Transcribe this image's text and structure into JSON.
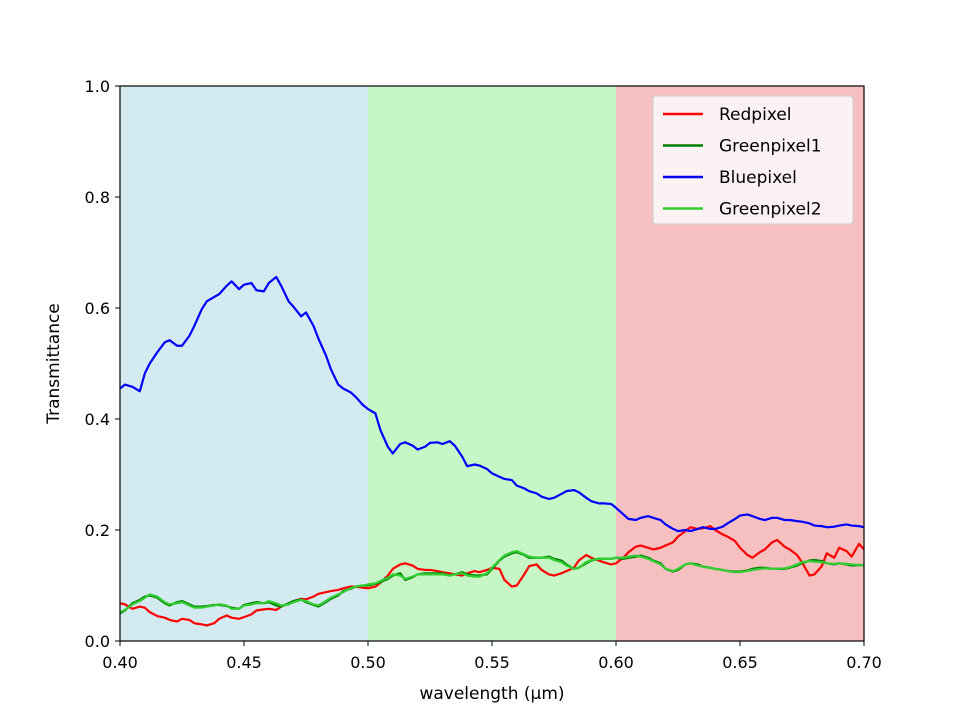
{
  "chart_data": {
    "type": "line",
    "title": "",
    "xlabel": "wavelength (μm)",
    "ylabel": "Transmittance",
    "xlim": [
      0.4,
      0.7
    ],
    "ylim": [
      0.0,
      1.0
    ],
    "x_ticks": [
      "0.40",
      "0.45",
      "0.50",
      "0.55",
      "0.60",
      "0.65",
      "0.70"
    ],
    "y_ticks": [
      "0.0",
      "0.2",
      "0.4",
      "0.6",
      "0.8",
      "1.0"
    ],
    "grid": false,
    "legend_position": "top-right",
    "bands": [
      {
        "from": 0.4,
        "to": 0.5,
        "color": "#d4eaf1"
      },
      {
        "from": 0.5,
        "to": 0.6,
        "color": "#c6f6c6"
      },
      {
        "from": 0.6,
        "to": 0.7,
        "color": "#f6bfc0"
      }
    ],
    "series": [
      {
        "name": "Redpixel",
        "color": "#ff0000",
        "x": [
          0.4,
          0.402,
          0.405,
          0.408,
          0.41,
          0.412,
          0.415,
          0.418,
          0.42,
          0.423,
          0.425,
          0.428,
          0.43,
          0.433,
          0.435,
          0.438,
          0.44,
          0.443,
          0.445,
          0.448,
          0.45,
          0.453,
          0.455,
          0.458,
          0.46,
          0.463,
          0.465,
          0.468,
          0.47,
          0.473,
          0.475,
          0.478,
          0.48,
          0.483,
          0.485,
          0.488,
          0.49,
          0.493,
          0.495,
          0.498,
          0.5,
          0.503,
          0.505,
          0.508,
          0.51,
          0.513,
          0.515,
          0.518,
          0.52,
          0.523,
          0.525,
          0.528,
          0.53,
          0.533,
          0.535,
          0.538,
          0.54,
          0.543,
          0.545,
          0.548,
          0.55,
          0.553,
          0.555,
          0.558,
          0.56,
          0.563,
          0.565,
          0.568,
          0.57,
          0.573,
          0.575,
          0.578,
          0.58,
          0.583,
          0.585,
          0.588,
          0.59,
          0.593,
          0.595,
          0.598,
          0.6,
          0.603,
          0.605,
          0.608,
          0.61,
          0.613,
          0.615,
          0.618,
          0.62,
          0.623,
          0.625,
          0.628,
          0.63,
          0.633,
          0.635,
          0.638,
          0.64,
          0.643,
          0.645,
          0.648,
          0.65,
          0.653,
          0.655,
          0.658,
          0.66,
          0.663,
          0.665,
          0.668,
          0.67,
          0.673,
          0.675,
          0.678,
          0.68,
          0.683,
          0.685,
          0.688,
          0.69,
          0.693,
          0.695,
          0.698,
          0.7
        ],
        "values": [
          0.068,
          0.066,
          0.058,
          0.062,
          0.06,
          0.052,
          0.045,
          0.042,
          0.038,
          0.035,
          0.04,
          0.038,
          0.032,
          0.03,
          0.028,
          0.032,
          0.04,
          0.046,
          0.042,
          0.04,
          0.043,
          0.048,
          0.055,
          0.057,
          0.058,
          0.056,
          0.062,
          0.068,
          0.072,
          0.076,
          0.075,
          0.08,
          0.085,
          0.088,
          0.09,
          0.092,
          0.095,
          0.098,
          0.098,
          0.096,
          0.095,
          0.098,
          0.105,
          0.118,
          0.13,
          0.138,
          0.14,
          0.136,
          0.13,
          0.128,
          0.128,
          0.126,
          0.124,
          0.122,
          0.12,
          0.118,
          0.122,
          0.126,
          0.124,
          0.128,
          0.132,
          0.13,
          0.11,
          0.098,
          0.1,
          0.12,
          0.135,
          0.138,
          0.128,
          0.12,
          0.118,
          0.122,
          0.126,
          0.132,
          0.145,
          0.155,
          0.15,
          0.145,
          0.142,
          0.138,
          0.14,
          0.15,
          0.16,
          0.17,
          0.172,
          0.168,
          0.165,
          0.168,
          0.172,
          0.178,
          0.188,
          0.198,
          0.205,
          0.202,
          0.203,
          0.207,
          0.2,
          0.192,
          0.188,
          0.18,
          0.168,
          0.155,
          0.15,
          0.16,
          0.165,
          0.178,
          0.182,
          0.17,
          0.165,
          0.155,
          0.142,
          0.118,
          0.12,
          0.135,
          0.158,
          0.15,
          0.168,
          0.162,
          0.152,
          0.175,
          0.165
        ]
      },
      {
        "name": "Greenpixel1",
        "color": "#008000",
        "x": [
          0.4,
          0.402,
          0.405,
          0.408,
          0.41,
          0.412,
          0.415,
          0.418,
          0.42,
          0.423,
          0.425,
          0.428,
          0.43,
          0.433,
          0.435,
          0.438,
          0.44,
          0.443,
          0.445,
          0.448,
          0.45,
          0.453,
          0.455,
          0.458,
          0.46,
          0.463,
          0.465,
          0.468,
          0.47,
          0.473,
          0.475,
          0.478,
          0.48,
          0.483,
          0.485,
          0.488,
          0.49,
          0.493,
          0.495,
          0.498,
          0.5,
          0.503,
          0.505,
          0.508,
          0.51,
          0.513,
          0.515,
          0.518,
          0.52,
          0.523,
          0.525,
          0.528,
          0.53,
          0.533,
          0.535,
          0.538,
          0.54,
          0.543,
          0.545,
          0.548,
          0.55,
          0.553,
          0.555,
          0.558,
          0.56,
          0.563,
          0.565,
          0.568,
          0.57,
          0.573,
          0.575,
          0.578,
          0.58,
          0.583,
          0.585,
          0.588,
          0.59,
          0.593,
          0.595,
          0.598,
          0.6,
          0.603,
          0.605,
          0.608,
          0.61,
          0.613,
          0.615,
          0.618,
          0.62,
          0.623,
          0.625,
          0.628,
          0.63,
          0.633,
          0.635,
          0.638,
          0.64,
          0.643,
          0.645,
          0.648,
          0.65,
          0.653,
          0.655,
          0.658,
          0.66,
          0.663,
          0.665,
          0.668,
          0.67,
          0.673,
          0.675,
          0.678,
          0.68,
          0.683,
          0.685,
          0.688,
          0.69,
          0.693,
          0.695,
          0.698,
          0.7
        ],
        "values": [
          0.05,
          0.055,
          0.068,
          0.074,
          0.08,
          0.082,
          0.078,
          0.068,
          0.064,
          0.07,
          0.072,
          0.066,
          0.062,
          0.062,
          0.063,
          0.065,
          0.065,
          0.063,
          0.06,
          0.058,
          0.065,
          0.068,
          0.07,
          0.068,
          0.07,
          0.064,
          0.062,
          0.068,
          0.072,
          0.075,
          0.07,
          0.065,
          0.062,
          0.07,
          0.076,
          0.082,
          0.09,
          0.094,
          0.098,
          0.1,
          0.1,
          0.103,
          0.106,
          0.112,
          0.118,
          0.122,
          0.11,
          0.115,
          0.12,
          0.122,
          0.122,
          0.122,
          0.122,
          0.118,
          0.12,
          0.124,
          0.12,
          0.118,
          0.118,
          0.12,
          0.13,
          0.145,
          0.152,
          0.158,
          0.16,
          0.155,
          0.15,
          0.15,
          0.15,
          0.152,
          0.148,
          0.145,
          0.138,
          0.13,
          0.132,
          0.14,
          0.145,
          0.148,
          0.148,
          0.148,
          0.15,
          0.148,
          0.15,
          0.152,
          0.154,
          0.15,
          0.145,
          0.14,
          0.13,
          0.125,
          0.128,
          0.138,
          0.14,
          0.138,
          0.134,
          0.132,
          0.13,
          0.128,
          0.126,
          0.125,
          0.125,
          0.127,
          0.13,
          0.132,
          0.132,
          0.13,
          0.13,
          0.13,
          0.132,
          0.136,
          0.14,
          0.145,
          0.146,
          0.144,
          0.14,
          0.138,
          0.14,
          0.138,
          0.136,
          0.137,
          0.136
        ]
      },
      {
        "name": "Bluepixel",
        "color": "#0000ff",
        "x": [
          0.4,
          0.402,
          0.405,
          0.408,
          0.41,
          0.412,
          0.415,
          0.418,
          0.42,
          0.423,
          0.425,
          0.428,
          0.43,
          0.433,
          0.435,
          0.438,
          0.44,
          0.443,
          0.445,
          0.448,
          0.45,
          0.453,
          0.455,
          0.458,
          0.46,
          0.463,
          0.465,
          0.468,
          0.47,
          0.473,
          0.475,
          0.478,
          0.48,
          0.483,
          0.485,
          0.488,
          0.49,
          0.493,
          0.495,
          0.498,
          0.5,
          0.503,
          0.505,
          0.508,
          0.51,
          0.513,
          0.515,
          0.518,
          0.52,
          0.523,
          0.525,
          0.528,
          0.53,
          0.533,
          0.535,
          0.538,
          0.54,
          0.543,
          0.545,
          0.548,
          0.55,
          0.553,
          0.555,
          0.558,
          0.56,
          0.563,
          0.565,
          0.568,
          0.57,
          0.573,
          0.575,
          0.578,
          0.58,
          0.583,
          0.585,
          0.588,
          0.59,
          0.593,
          0.595,
          0.598,
          0.6,
          0.603,
          0.605,
          0.608,
          0.61,
          0.613,
          0.615,
          0.618,
          0.62,
          0.623,
          0.625,
          0.628,
          0.63,
          0.633,
          0.635,
          0.638,
          0.64,
          0.643,
          0.645,
          0.648,
          0.65,
          0.653,
          0.655,
          0.658,
          0.66,
          0.663,
          0.665,
          0.668,
          0.67,
          0.673,
          0.675,
          0.678,
          0.68,
          0.683,
          0.685,
          0.688,
          0.69,
          0.693,
          0.695,
          0.698,
          0.7
        ],
        "values": [
          0.455,
          0.462,
          0.458,
          0.45,
          0.482,
          0.5,
          0.52,
          0.538,
          0.542,
          0.532,
          0.532,
          0.55,
          0.568,
          0.598,
          0.612,
          0.62,
          0.625,
          0.64,
          0.648,
          0.634,
          0.642,
          0.645,
          0.632,
          0.63,
          0.645,
          0.656,
          0.64,
          0.612,
          0.602,
          0.585,
          0.592,
          0.568,
          0.545,
          0.515,
          0.49,
          0.462,
          0.455,
          0.448,
          0.44,
          0.425,
          0.418,
          0.41,
          0.38,
          0.35,
          0.338,
          0.355,
          0.358,
          0.352,
          0.345,
          0.35,
          0.357,
          0.358,
          0.355,
          0.36,
          0.352,
          0.332,
          0.315,
          0.318,
          0.316,
          0.31,
          0.302,
          0.296,
          0.292,
          0.29,
          0.28,
          0.275,
          0.27,
          0.266,
          0.26,
          0.256,
          0.258,
          0.265,
          0.27,
          0.272,
          0.268,
          0.258,
          0.252,
          0.248,
          0.248,
          0.247,
          0.24,
          0.228,
          0.22,
          0.218,
          0.222,
          0.225,
          0.222,
          0.218,
          0.21,
          0.202,
          0.198,
          0.2,
          0.198,
          0.202,
          0.205,
          0.202,
          0.202,
          0.206,
          0.212,
          0.22,
          0.226,
          0.228,
          0.225,
          0.22,
          0.218,
          0.222,
          0.222,
          0.218,
          0.218,
          0.216,
          0.215,
          0.212,
          0.208,
          0.207,
          0.205,
          0.206,
          0.208,
          0.21,
          0.208,
          0.207,
          0.205
        ]
      },
      {
        "name": "Greenpixel2",
        "color": "#32cd32",
        "x": [
          0.4,
          0.402,
          0.405,
          0.408,
          0.41,
          0.412,
          0.415,
          0.418,
          0.42,
          0.423,
          0.425,
          0.428,
          0.43,
          0.433,
          0.435,
          0.438,
          0.44,
          0.443,
          0.445,
          0.448,
          0.45,
          0.453,
          0.455,
          0.458,
          0.46,
          0.463,
          0.465,
          0.468,
          0.47,
          0.473,
          0.475,
          0.478,
          0.48,
          0.483,
          0.485,
          0.488,
          0.49,
          0.493,
          0.495,
          0.498,
          0.5,
          0.503,
          0.505,
          0.508,
          0.51,
          0.513,
          0.515,
          0.518,
          0.52,
          0.523,
          0.525,
          0.528,
          0.53,
          0.533,
          0.535,
          0.538,
          0.54,
          0.543,
          0.545,
          0.548,
          0.55,
          0.553,
          0.555,
          0.558,
          0.56,
          0.563,
          0.565,
          0.568,
          0.57,
          0.573,
          0.575,
          0.578,
          0.58,
          0.583,
          0.585,
          0.588,
          0.59,
          0.593,
          0.595,
          0.598,
          0.6,
          0.603,
          0.605,
          0.608,
          0.61,
          0.613,
          0.615,
          0.618,
          0.62,
          0.623,
          0.625,
          0.628,
          0.63,
          0.633,
          0.635,
          0.638,
          0.64,
          0.643,
          0.645,
          0.648,
          0.65,
          0.653,
          0.655,
          0.658,
          0.66,
          0.663,
          0.665,
          0.668,
          0.67,
          0.673,
          0.675,
          0.678,
          0.68,
          0.683,
          0.685,
          0.688,
          0.69,
          0.693,
          0.695,
          0.698,
          0.7
        ],
        "values": [
          0.052,
          0.056,
          0.066,
          0.072,
          0.078,
          0.084,
          0.08,
          0.07,
          0.066,
          0.068,
          0.07,
          0.064,
          0.06,
          0.06,
          0.062,
          0.064,
          0.066,
          0.064,
          0.058,
          0.058,
          0.064,
          0.066,
          0.068,
          0.068,
          0.072,
          0.068,
          0.064,
          0.066,
          0.07,
          0.074,
          0.072,
          0.066,
          0.064,
          0.072,
          0.078,
          0.084,
          0.088,
          0.095,
          0.098,
          0.1,
          0.102,
          0.104,
          0.108,
          0.114,
          0.12,
          0.118,
          0.112,
          0.116,
          0.12,
          0.12,
          0.12,
          0.12,
          0.12,
          0.118,
          0.12,
          0.122,
          0.118,
          0.116,
          0.116,
          0.122,
          0.132,
          0.146,
          0.154,
          0.16,
          0.162,
          0.156,
          0.152,
          0.15,
          0.15,
          0.15,
          0.146,
          0.142,
          0.136,
          0.13,
          0.132,
          0.142,
          0.146,
          0.148,
          0.148,
          0.148,
          0.15,
          0.15,
          0.152,
          0.154,
          0.152,
          0.148,
          0.144,
          0.138,
          0.13,
          0.126,
          0.13,
          0.138,
          0.14,
          0.136,
          0.134,
          0.132,
          0.13,
          0.128,
          0.126,
          0.124,
          0.124,
          0.126,
          0.128,
          0.13,
          0.131,
          0.13,
          0.13,
          0.131,
          0.133,
          0.138,
          0.142,
          0.144,
          0.143,
          0.142,
          0.14,
          0.139,
          0.14,
          0.139,
          0.138,
          0.137,
          0.136
        ]
      }
    ]
  }
}
